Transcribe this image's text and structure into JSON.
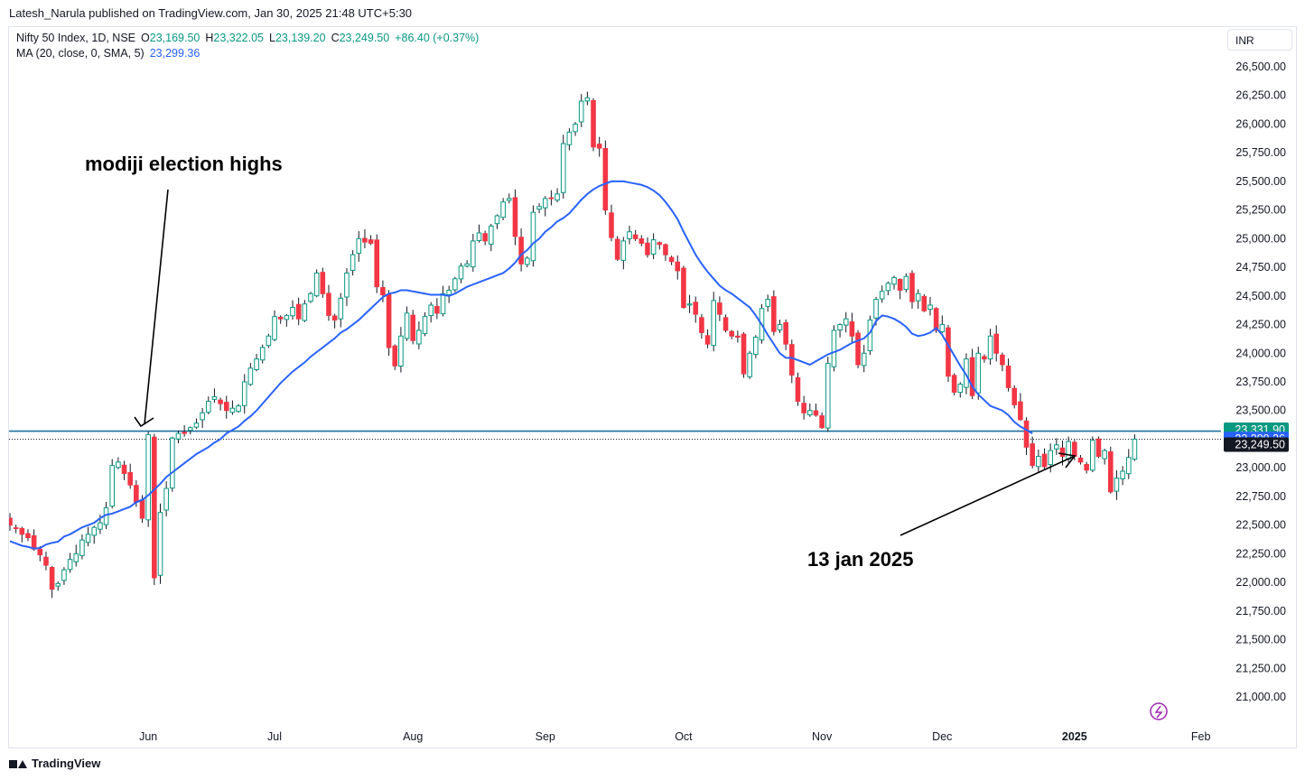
{
  "header": {
    "published": "Latesh_Narula published on TradingView.com, Jan 30, 2025 21:48 UTC+5:30"
  },
  "legend": {
    "symbol": "Nifty 50 Index, 1D, NSE",
    "o_label": "O",
    "o": "23,169.50",
    "h_label": "H",
    "h": "23,322.05",
    "l_label": "L",
    "l": "23,139.20",
    "c_label": "C",
    "c": "23,249.50",
    "change": "+86.40 (+0.37%)",
    "ma_label": "MA (20, close, 0, SMA, 5)",
    "ma_value": "23,299.36"
  },
  "currency_button": "INR",
  "footer_brand": "TradingView",
  "colors": {
    "up": "#089981",
    "down": "#f23645",
    "ma": "#2962ff",
    "hline": "#1e6fa0",
    "text": "#131722",
    "grid_axis": "#e0e3eb"
  },
  "chart_data": {
    "type": "candlestick",
    "symbol": "Nifty 50 Index",
    "interval": "1D",
    "exchange": "NSE",
    "ylim": [
      20800,
      26800
    ],
    "y_ticks": [
      21000,
      21250,
      21500,
      21750,
      22000,
      22250,
      22500,
      22750,
      23000,
      23250,
      23500,
      23750,
      24000,
      24250,
      24500,
      24750,
      25000,
      25250,
      25500,
      25750,
      26000,
      26250,
      26500
    ],
    "y_tick_labels": [
      "21,000.00",
      "21,250.00",
      "21,500.00",
      "21,750.00",
      "22,000.00",
      "22,250.00",
      "22,500.00",
      "22,750.00",
      "23,000.00",
      "23,250.00",
      "23,500.00",
      "23,750.00",
      "24,000.00",
      "24,250.00",
      "24,500.00",
      "24,750.00",
      "25,000.00",
      "25,250.00",
      "25,500.00",
      "25,750.00",
      "26,000.00",
      "26,250.00",
      "26,500.00"
    ],
    "x_ticks": [
      {
        "label": "Jun",
        "bar": 23,
        "bold": false
      },
      {
        "label": "Jul",
        "bar": 44,
        "bold": false
      },
      {
        "label": "Aug",
        "bar": 67,
        "bold": false
      },
      {
        "label": "Sep",
        "bar": 89,
        "bold": false
      },
      {
        "label": "Oct",
        "bar": 112,
        "bold": false
      },
      {
        "label": "Nov",
        "bar": 135,
        "bold": false
      },
      {
        "label": "Dec",
        "bar": 155,
        "bold": false
      },
      {
        "label": "2025",
        "bar": 177,
        "bold": true
      },
      {
        "label": "Feb",
        "bar": 198,
        "bold": false
      }
    ],
    "ohlc_closes": [
      22500,
      22470,
      22420,
      22390,
      22290,
      22240,
      22150,
      21940,
      21990,
      22110,
      22200,
      22250,
      22370,
      22420,
      22480,
      22520,
      22650,
      23020,
      23050,
      22950,
      22850,
      22700,
      22560,
      23290,
      22040,
      22610,
      22820,
      23260,
      23300,
      23300,
      23350,
      23390,
      23480,
      23580,
      23620,
      23560,
      23500,
      23520,
      23540,
      23750,
      23870,
      23950,
      24050,
      24150,
      24320,
      24300,
      24330,
      24400,
      24300,
      24430,
      24520,
      24700,
      24520,
      24330,
      24290,
      24480,
      24700,
      24860,
      25000,
      24970,
      24960,
      24580,
      24510,
      24050,
      23890,
      24150,
      24350,
      24110,
      24200,
      24320,
      24420,
      24350,
      24520,
      24550,
      24650,
      24760,
      24780,
      24980,
      25050,
      24980,
      25110,
      25200,
      25320,
      25350,
      25020,
      24780,
      24830,
      25230,
      25280,
      25350,
      25350,
      25390,
      25830,
      25930,
      26000,
      26200,
      26230,
      25800,
      25790,
      25250,
      25010,
      24820,
      24980,
      25060,
      25000,
      24960,
      24860,
      24990,
      24950,
      24860,
      24800,
      24720,
      24400,
      24430,
      24340,
      24180,
      24080,
      24460,
      24340,
      24200,
      24150,
      24140,
      23820,
      24000,
      24140,
      24390,
      24470,
      24190,
      24250,
      24080,
      23810,
      23580,
      23480,
      23500,
      23460,
      23350,
      23910,
      24200,
      24250,
      24300,
      24150,
      23900,
      24000,
      24290,
      24470,
      24540,
      24610,
      24660,
      24550,
      24670,
      24450,
      24520,
      24370,
      24420,
      24200,
      24250,
      23800,
      23660,
      23730,
      23950,
      23630,
      24000,
      23950,
      24150,
      24000,
      23900,
      23700,
      23550,
      23420,
      23180,
      23020,
      23100,
      23010,
      23150,
      23200,
      23100,
      23230,
      23100,
      23050,
      22980,
      23240,
      23100,
      23150,
      22790,
      22910,
      22970,
      23090,
      23250
    ],
    "ma_20": [
      22360,
      22340,
      22320,
      22310,
      22295,
      22300,
      22330,
      22345,
      22355,
      22400,
      22420,
      22450,
      22480,
      22500,
      22520,
      22560,
      22590,
      22600,
      22620,
      22640,
      22660,
      22700,
      22720,
      22760,
      22810,
      22860,
      22920,
      22960,
      23000,
      23040,
      23080,
      23120,
      23150,
      23180,
      23220,
      23250,
      23300,
      23330,
      23360,
      23410,
      23450,
      23500,
      23560,
      23620,
      23680,
      23740,
      23790,
      23840,
      23880,
      23920,
      23970,
      24010,
      24050,
      24090,
      24130,
      24180,
      24210,
      24250,
      24290,
      24340,
      24390,
      24440,
      24490,
      24520,
      24530,
      24550,
      24550,
      24540,
      24530,
      24520,
      24510,
      24510,
      24510,
      24500,
      24520,
      24550,
      24580,
      24600,
      24620,
      24640,
      24660,
      24680,
      24700,
      24740,
      24790,
      24860,
      24900,
      24960,
      25000,
      25060,
      25100,
      25150,
      25180,
      25220,
      25280,
      25340,
      25390,
      25430,
      25460,
      25480,
      25500,
      25500,
      25500,
      25490,
      25480,
      25470,
      25450,
      25420,
      25380,
      25320,
      25250,
      25170,
      25060,
      24960,
      24860,
      24780,
      24710,
      24650,
      24590,
      24550,
      24520,
      24480,
      24440,
      24400,
      24330,
      24250,
      24160,
      24080,
      24000,
      23960,
      23960,
      23940,
      23920,
      23900,
      23930,
      23960,
      23990,
      24010,
      24030,
      24060,
      24090,
      24110,
      24130,
      24180,
      24280,
      24330,
      24320,
      24300,
      24270,
      24230,
      24170,
      24150,
      24160,
      24180,
      24220,
      24160,
      24070,
      23980,
      23890,
      23810,
      23710,
      23640,
      23590,
      23540,
      23520,
      23500,
      23460,
      23400,
      23360,
      23330,
      23300
    ],
    "h_line": 23320,
    "last_price": 23249.5,
    "price_labels": [
      {
        "value": "23,331.90",
        "color": "#089981"
      },
      {
        "value": "23,299.36",
        "color": "#2962ff"
      },
      {
        "value": "23,249.50",
        "color": "#131722"
      }
    ]
  },
  "annotations": [
    {
      "text": "modiji election highs",
      "target": "Jun 2024 breakout high"
    },
    {
      "text": "13 jan 2025",
      "target": "Jan 2025 retest low"
    }
  ]
}
